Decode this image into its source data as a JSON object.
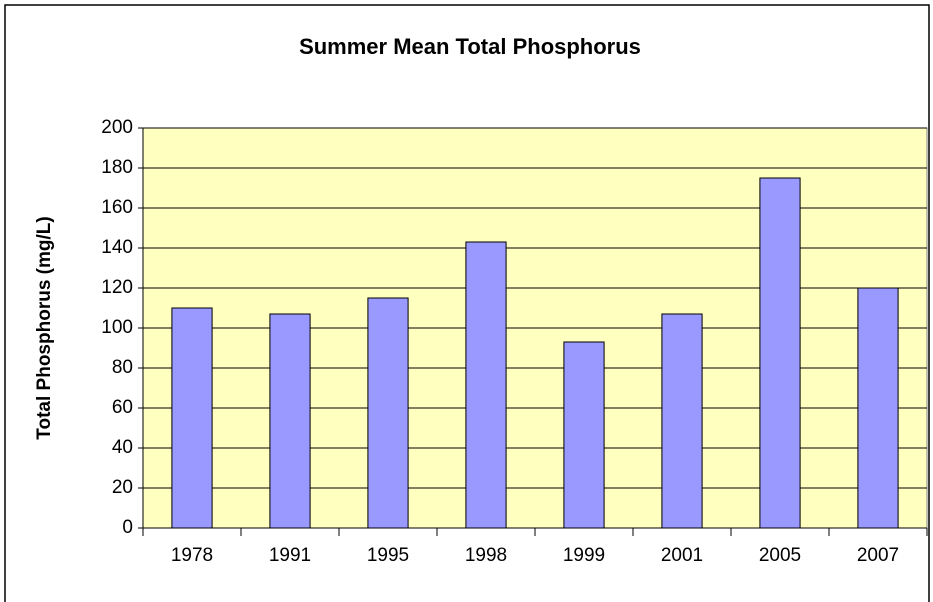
{
  "chart_data": {
    "type": "bar",
    "title": "Summer Mean Total Phosphorus",
    "y_label": "Total Phosphorus (mg/L)",
    "categories": [
      "1978",
      "1991",
      "1995",
      "1998",
      "1999",
      "2001",
      "2005",
      "2007"
    ],
    "values": [
      110,
      107,
      115,
      143,
      93,
      107,
      175,
      120
    ],
    "color": "#9999ff",
    "ylim": [
      0,
      200
    ],
    "yticks": [
      0,
      20,
      40,
      60,
      80,
      100,
      120,
      140,
      160,
      180,
      200
    ],
    "grid": true
  }
}
